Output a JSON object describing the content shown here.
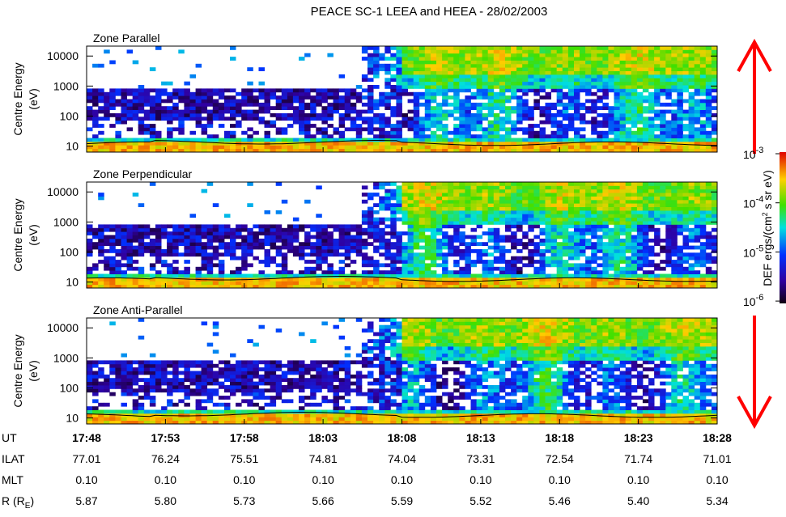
{
  "title": "PEACE SC-1 LEEA and HEEA - 28/02/2003",
  "panels": [
    {
      "title": "Zone Parallel"
    },
    {
      "title": "Zone Perpendicular"
    },
    {
      "title": "Zone Anti-Parallel"
    }
  ],
  "y_axis": {
    "label": "Centre Energy",
    "unit": "(eV)",
    "ticks": [
      10,
      100,
      1000,
      10000
    ]
  },
  "colorbar": {
    "label": "DEF ergs/(cm",
    "label_sup": "2",
    "label_tail": " s sr eV)",
    "ticks": [
      {
        "value": 0.001,
        "base": "10",
        "exponent": "-3"
      },
      {
        "value": 0.0001,
        "base": "10",
        "exponent": "-4"
      },
      {
        "value": 1e-05,
        "base": "10",
        "exponent": "-5"
      },
      {
        "value": 1e-06,
        "base": "10",
        "exponent": "-6"
      }
    ]
  },
  "time_axis": {
    "rows": [
      {
        "label": "UT",
        "values": [
          "17:48",
          "17:53",
          "17:58",
          "18:03",
          "18:08",
          "18:13",
          "18:18",
          "18:23",
          "18:28"
        ]
      },
      {
        "label": "ILAT",
        "values": [
          "77.01",
          "76.24",
          "75.51",
          "74.81",
          "74.04",
          "73.31",
          "72.54",
          "71.74",
          "71.01"
        ]
      },
      {
        "label": "MLT",
        "values": [
          "0.10",
          "0.10",
          "0.10",
          "0.10",
          "0.10",
          "0.10",
          "0.10",
          "0.10",
          "0.10"
        ]
      },
      {
        "label": "R (R",
        "label_sub": "E",
        "label_tail": ")",
        "values": [
          "5.87",
          "5.80",
          "5.73",
          "5.66",
          "5.59",
          "5.52",
          "5.46",
          "5.40",
          "5.34"
        ]
      }
    ]
  }
}
